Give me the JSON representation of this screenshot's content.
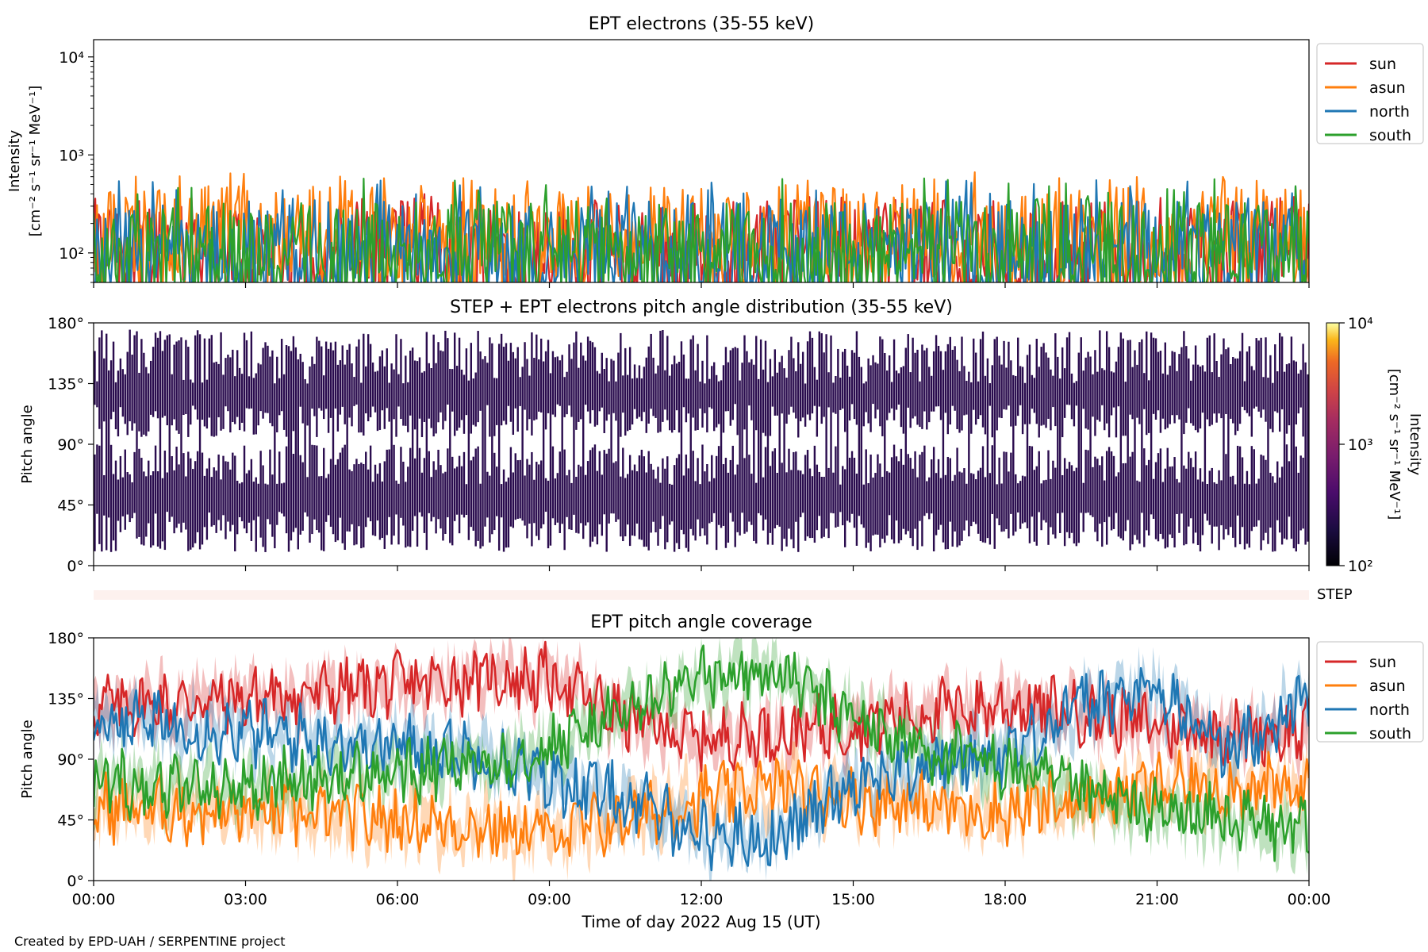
{
  "figure": {
    "footer": "Created by EPD-UAH / SERPENTINE project",
    "xlabel": "Time of day 2022 Aug 15 (UT)"
  },
  "colors": {
    "sun": "#d62728",
    "asun": "#ff7f0e",
    "north": "#1f77b4",
    "south": "#2ca02c",
    "pad_fill": "#2a0c4e",
    "step_bar": "#fdf1ee"
  },
  "chart_data": [
    {
      "type": "line",
      "title": "EPT electrons (35-55 keV)",
      "ylabel": [
        "Intensity",
        "[cm⁻² s⁻¹ sr⁻¹ MeV⁻¹]"
      ],
      "xlim": [
        "00:00",
        "24:00"
      ],
      "yscale": "log",
      "ylim": [
        50,
        15000
      ],
      "yticks": [
        {
          "value": 100,
          "label": "10²"
        },
        {
          "value": 1000,
          "label": "10³"
        },
        {
          "value": 10000,
          "label": "10⁴"
        }
      ],
      "x": [
        "00:00",
        "02:00",
        "04:00",
        "06:00",
        "08:00",
        "10:00",
        "12:00",
        "14:00",
        "16:00",
        "18:00",
        "20:00",
        "22:00",
        "24:00"
      ],
      "series": [
        {
          "name": "sun",
          "values": [
            120,
            130,
            110,
            140,
            125,
            115,
            120,
            130,
            118,
            122,
            125,
            120,
            130
          ],
          "peak": 350
        },
        {
          "name": "asun",
          "values": [
            150,
            160,
            170,
            165,
            150,
            160,
            170,
            165,
            160,
            150,
            165,
            160,
            170
          ],
          "peak": 680
        },
        {
          "name": "north",
          "values": [
            110,
            115,
            120,
            110,
            105,
            110,
            115,
            120,
            110,
            115,
            120,
            110,
            115
          ],
          "peak": 560
        },
        {
          "name": "south",
          "values": [
            105,
            110,
            115,
            110,
            120,
            110,
            105,
            115,
            110,
            120,
            115,
            110,
            118
          ],
          "peak": 580
        }
      ],
      "legend": "right"
    },
    {
      "type": "heatmap",
      "title": "STEP + EPT electrons pitch angle distribution (35-55 keV)",
      "ylabel": "Pitch angle",
      "xlim": [
        "00:00",
        "24:00"
      ],
      "ylim": [
        0,
        180
      ],
      "yticks": [
        "0°",
        "45°",
        "90°",
        "135°",
        "180°"
      ],
      "colorbar": {
        "label": [
          "Intensity",
          "[cm⁻² s⁻¹ sr⁻¹ MeV⁻¹]"
        ],
        "scale": "log",
        "range": [
          100,
          10000
        ],
        "ticks": [
          "10²",
          "10³",
          "10⁴"
        ],
        "colormap": "inferno"
      },
      "note": "values mostly near 1e2 (dark purple), with gaps around 90°"
    },
    {
      "type": "bar",
      "label": "STEP"
    },
    {
      "type": "line",
      "title": "EPT pitch angle coverage",
      "ylabel": "Pitch angle",
      "xlabel": "Time of day 2022 Aug 15 (UT)",
      "xlim": [
        "00:00",
        "24:00"
      ],
      "xticks": [
        "00:00",
        "03:00",
        "06:00",
        "09:00",
        "12:00",
        "15:00",
        "18:00",
        "21:00",
        "00:00"
      ],
      "ylim": [
        0,
        180
      ],
      "yticks": [
        "0°",
        "45°",
        "90°",
        "135°",
        "180°"
      ],
      "x_hours": [
        0,
        1.5,
        3,
        4.5,
        6,
        7.5,
        9,
        10.5,
        12,
        13.5,
        15,
        16.5,
        18,
        19.5,
        21,
        22.5,
        24
      ],
      "series": [
        {
          "name": "sun",
          "values": [
            130,
            132,
            135,
            140,
            145,
            150,
            150,
            120,
            105,
            110,
            115,
            125,
            130,
            125,
            115,
            110,
            110
          ]
        },
        {
          "name": "asun",
          "values": [
            55,
            52,
            50,
            48,
            45,
            40,
            35,
            45,
            60,
            70,
            60,
            55,
            50,
            60,
            70,
            70,
            65
          ]
        },
        {
          "name": "north",
          "values": [
            120,
            115,
            110,
            105,
            100,
            95,
            75,
            60,
            35,
            30,
            75,
            85,
            95,
            130,
            140,
            95,
            140
          ]
        },
        {
          "name": "south",
          "values": [
            75,
            70,
            70,
            75,
            80,
            85,
            100,
            125,
            150,
            155,
            120,
            95,
            85,
            65,
            50,
            45,
            35
          ]
        }
      ],
      "legend": "right"
    }
  ]
}
